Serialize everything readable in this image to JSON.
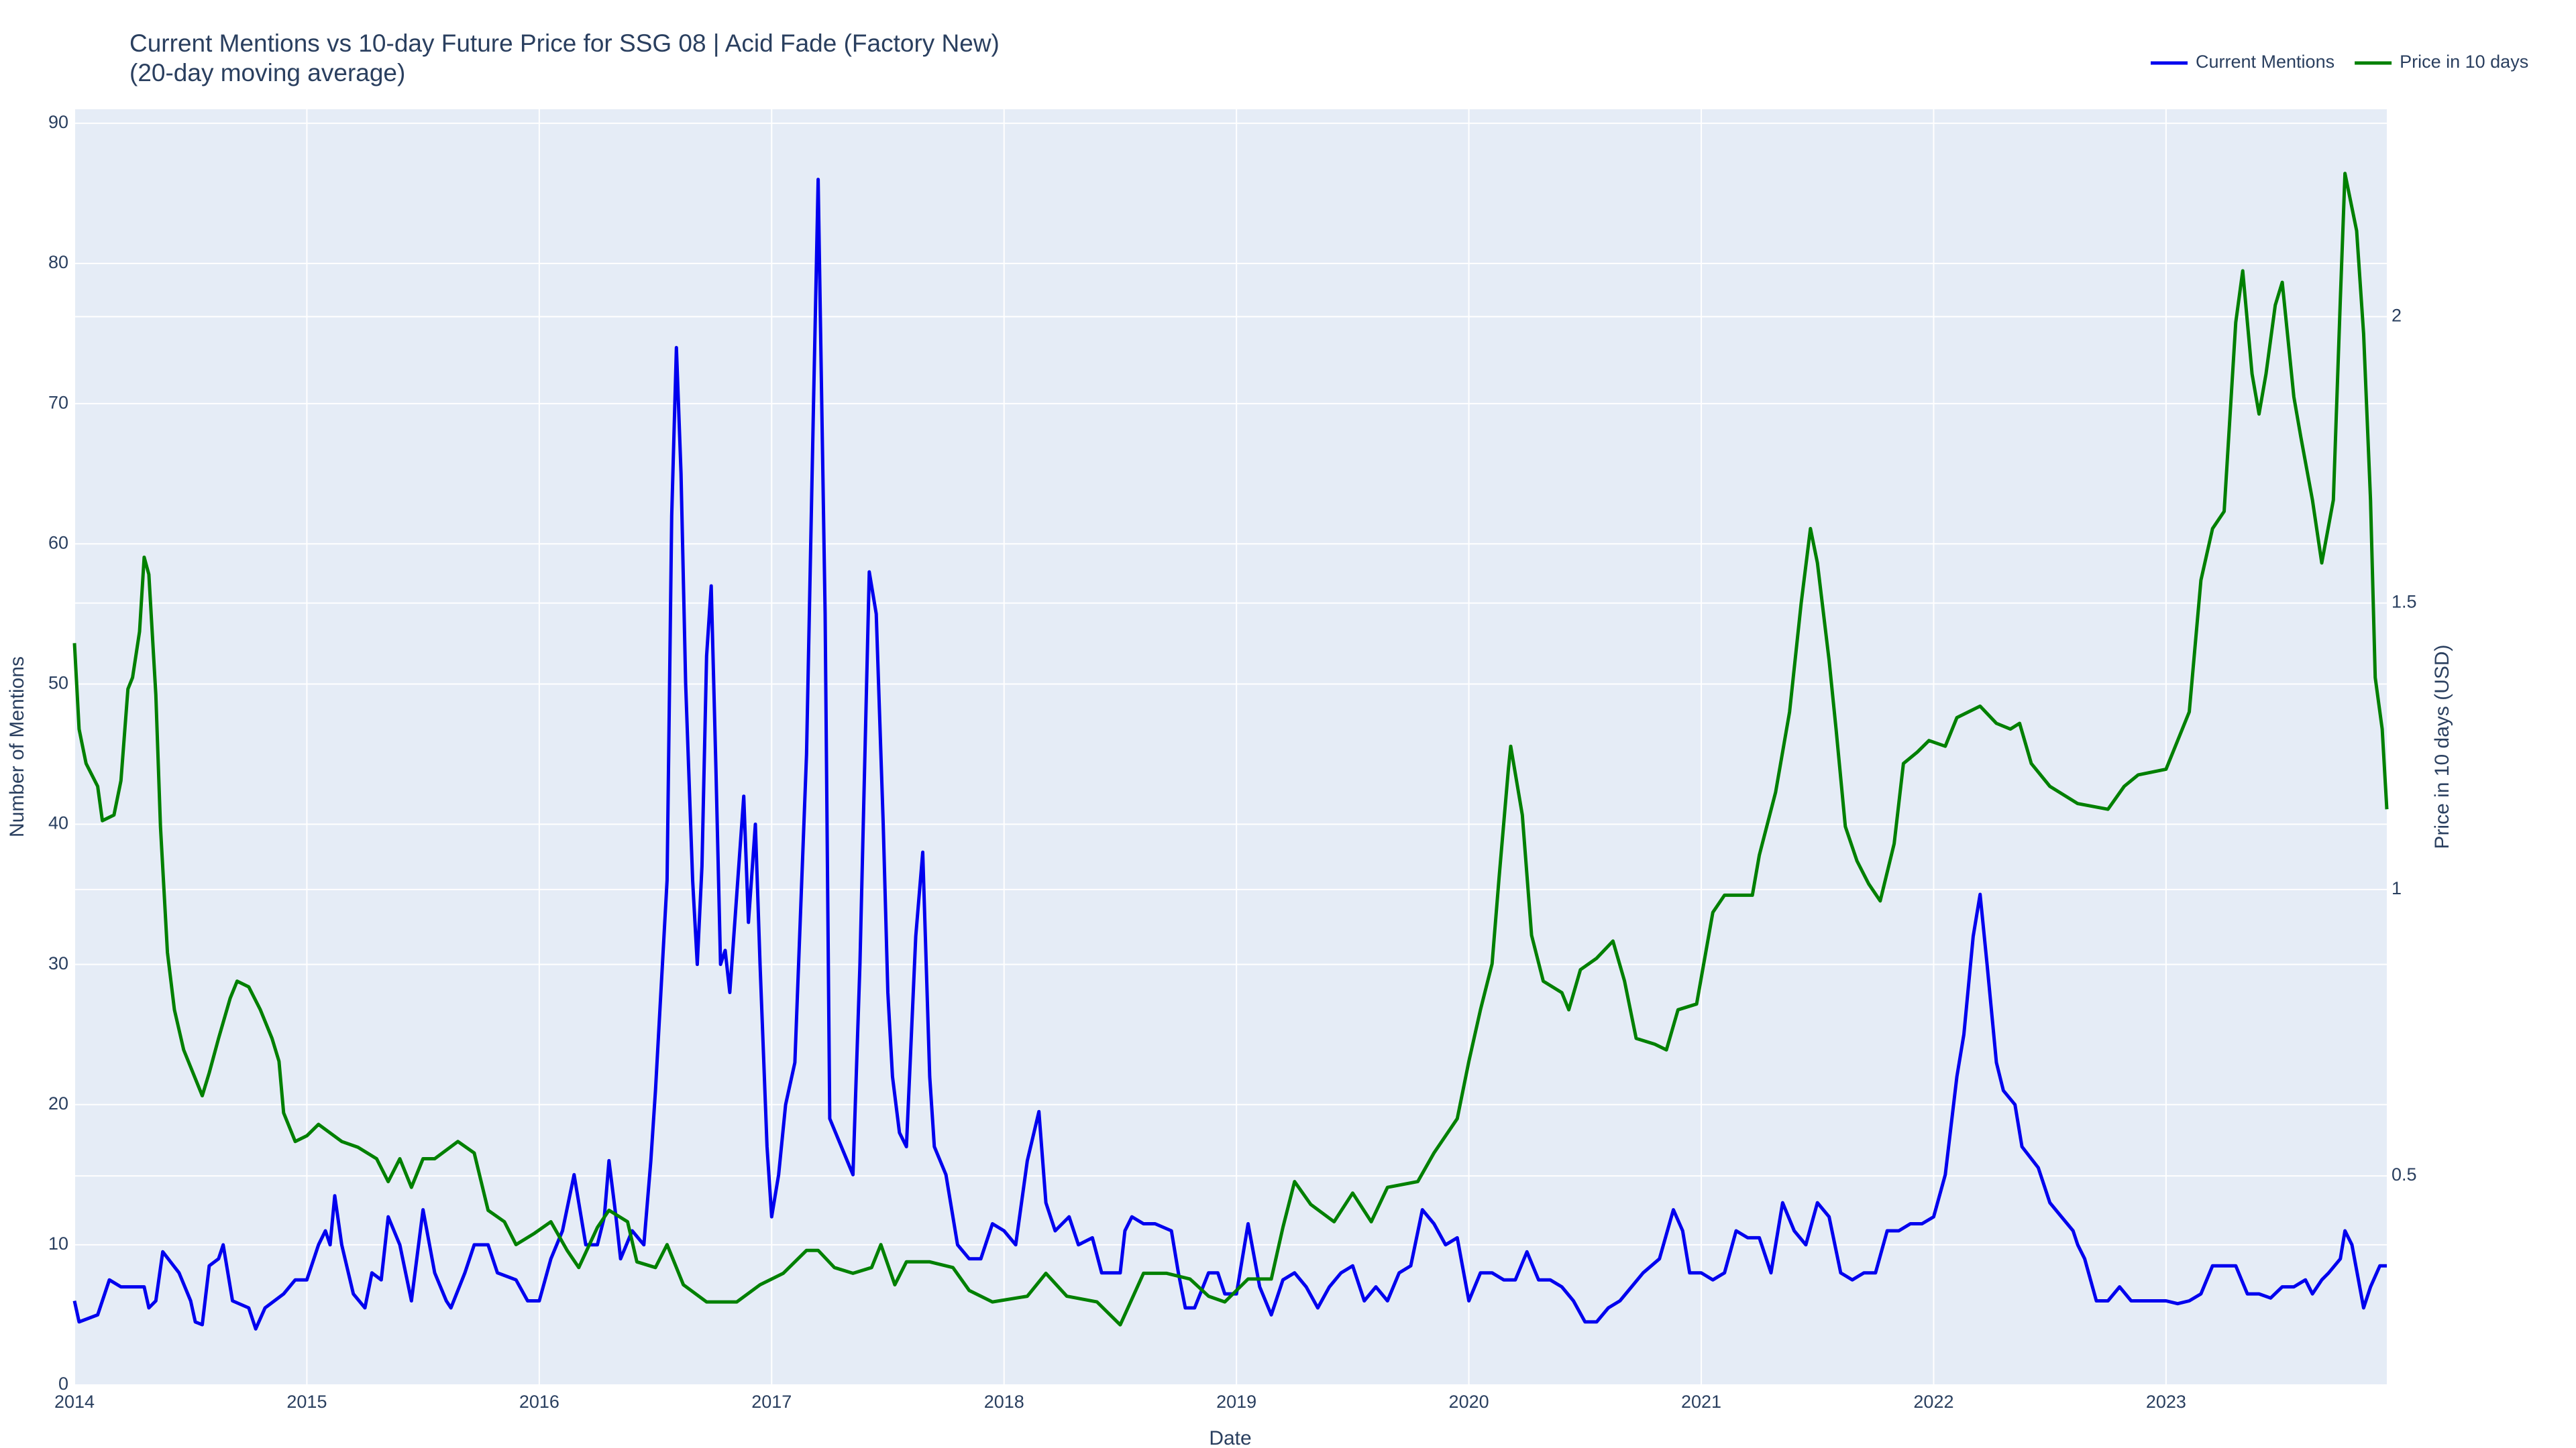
{
  "chart_data": {
    "type": "line",
    "title": "Current Mentions vs 10-day Future Price for SSG 08 | Acid Fade (Factory New)",
    "subtitle": "(20-day moving average)",
    "x_label": "Date",
    "y_label": "Number of Mentions",
    "y2_label": "Price in 10 days (USD)",
    "xlim": [
      2014,
      2023.95
    ],
    "xticks": [
      2014,
      2015,
      2016,
      2017,
      2018,
      2019,
      2020,
      2021,
      2022,
      2023
    ],
    "ylim": [
      0,
      91
    ],
    "yticks": [
      0,
      10,
      20,
      30,
      40,
      50,
      60,
      70,
      80,
      90
    ],
    "y2lim": [
      0.135,
      2.362
    ],
    "y2ticks": [
      0.5,
      1,
      1.5,
      2
    ],
    "grid": true,
    "legend": "top-right",
    "series": [
      {
        "name": "Current Mentions",
        "color": "#0000ee",
        "x": [
          2014.0,
          2014.02,
          2014.1,
          2014.15,
          2014.2,
          2014.3,
          2014.32,
          2014.35,
          2014.38,
          2014.45,
          2014.5,
          2014.52,
          2014.55,
          2014.58,
          2014.62,
          2014.64,
          2014.68,
          2014.75,
          2014.78,
          2014.82,
          2014.9,
          2014.95,
          2015.0,
          2015.05,
          2015.08,
          2015.1,
          2015.12,
          2015.15,
          2015.2,
          2015.25,
          2015.28,
          2015.32,
          2015.35,
          2015.4,
          2015.45,
          2015.5,
          2015.55,
          2015.6,
          2015.62,
          2015.68,
          2015.72,
          2015.78,
          2015.82,
          2015.9,
          2015.95,
          2016.0,
          2016.05,
          2016.1,
          2016.15,
          2016.2,
          2016.25,
          2016.28,
          2016.3,
          2016.33,
          2016.35,
          2016.4,
          2016.45,
          2016.48,
          2016.5,
          2016.52,
          2016.55,
          2016.57,
          2016.59,
          2016.61,
          2016.63,
          2016.66,
          2016.68,
          2016.7,
          2016.72,
          2016.74,
          2016.76,
          2016.78,
          2016.8,
          2016.82,
          2016.85,
          2016.88,
          2016.9,
          2016.93,
          2016.95,
          2016.98,
          2017.0,
          2017.03,
          2017.06,
          2017.1,
          2017.15,
          2017.18,
          2017.2,
          2017.23,
          2017.25,
          2017.3,
          2017.35,
          2017.38,
          2017.42,
          2017.45,
          2017.48,
          2017.5,
          2017.52,
          2017.55,
          2017.58,
          2017.62,
          2017.65,
          2017.68,
          2017.7,
          2017.75,
          2017.8,
          2017.85,
          2017.9,
          2017.95,
          2018.0,
          2018.05,
          2018.1,
          2018.15,
          2018.18,
          2018.22,
          2018.28,
          2018.32,
          2018.38,
          2018.42,
          2018.5,
          2018.52,
          2018.55,
          2018.6,
          2018.65,
          2018.72,
          2018.75,
          2018.78,
          2018.82,
          2018.88,
          2018.92,
          2018.95,
          2019.0,
          2019.05,
          2019.1,
          2019.15,
          2019.2,
          2019.25,
          2019.3,
          2019.35,
          2019.4,
          2019.45,
          2019.5,
          2019.55,
          2019.6,
          2019.65,
          2019.7,
          2019.75,
          2019.8,
          2019.85,
          2019.9,
          2019.95,
          2020.0,
          2020.05,
          2020.1,
          2020.15,
          2020.2,
          2020.25,
          2020.3,
          2020.35,
          2020.4,
          2020.45,
          2020.5,
          2020.55,
          2020.6,
          2020.65,
          2020.7,
          2020.75,
          2020.82,
          2020.88,
          2020.92,
          2020.95,
          2021.0,
          2021.05,
          2021.1,
          2021.15,
          2021.2,
          2021.25,
          2021.3,
          2021.35,
          2021.4,
          2021.45,
          2021.5,
          2021.55,
          2021.6,
          2021.65,
          2021.7,
          2021.75,
          2021.8,
          2021.85,
          2021.9,
          2021.95,
          2022.0,
          2022.05,
          2022.1,
          2022.13,
          2022.17,
          2022.2,
          2022.23,
          2022.27,
          2022.3,
          2022.35,
          2022.38,
          2022.45,
          2022.5,
          2022.55,
          2022.6,
          2022.62,
          2022.65,
          2022.7,
          2022.75,
          2022.8,
          2022.85,
          2023.0,
          2023.05,
          2023.1,
          2023.15,
          2023.2,
          2023.25,
          2023.3,
          2023.35,
          2023.4,
          2023.45,
          2023.5,
          2023.55,
          2023.6,
          2023.63,
          2023.67,
          2023.7,
          2023.75,
          2023.77,
          2023.8,
          2023.85,
          2023.88,
          2023.92,
          2023.95
        ],
        "values": [
          6,
          4.5,
          5,
          7.5,
          7,
          7,
          5.5,
          6,
          9.5,
          8,
          6,
          4.5,
          4.3,
          8.5,
          9,
          10,
          6,
          5.5,
          4,
          5.5,
          6.5,
          7.5,
          7.5,
          10,
          11,
          10,
          13.5,
          10,
          6.5,
          5.5,
          8,
          7.5,
          12,
          10,
          6,
          12.5,
          8,
          6,
          5.5,
          8,
          10,
          10,
          8,
          7.5,
          6,
          6,
          9,
          11,
          15,
          10,
          10,
          12,
          16,
          12,
          9,
          11,
          10,
          16,
          21,
          27,
          36,
          62,
          74,
          65,
          50,
          36,
          30,
          37,
          52,
          57,
          44,
          30,
          31,
          28,
          35,
          42,
          33,
          40,
          30,
          17,
          12,
          15,
          20,
          23,
          45,
          70,
          86,
          55,
          19,
          17,
          15,
          30,
          58,
          55,
          40,
          28,
          22,
          18,
          17,
          32,
          38,
          22,
          17,
          15,
          10,
          9,
          9,
          11.5,
          11,
          10,
          16,
          19.5,
          13,
          11,
          12,
          10,
          10.5,
          8,
          8,
          11,
          12,
          11.5,
          11.5,
          11,
          8,
          5.5,
          5.5,
          8,
          8,
          6.5,
          6.5,
          11.5,
          7,
          5,
          7.5,
          8,
          7,
          5.5,
          7,
          8,
          8.5,
          6,
          7,
          6,
          8,
          8.5,
          12.5,
          11.5,
          10,
          10.5,
          6,
          8,
          8,
          7.5,
          7.5,
          9.5,
          7.5,
          7.5,
          7,
          6,
          4.5,
          4.5,
          5.5,
          6,
          7,
          8,
          9,
          12.5,
          11,
          8,
          8,
          7.5,
          8,
          11,
          10.5,
          10.5,
          8,
          13,
          11,
          10,
          13,
          12,
          8,
          7.5,
          8,
          8,
          11,
          11,
          11.5,
          11.5,
          12,
          15,
          22,
          25,
          32,
          35,
          30,
          23,
          21,
          20,
          17,
          15.5,
          13,
          12,
          11,
          10,
          9,
          6,
          6,
          7,
          6,
          6,
          5.8,
          6,
          6.5,
          8.5,
          8.5,
          8.5,
          6.5,
          6.5,
          6.2,
          7,
          7,
          7.5,
          6.5,
          7.5,
          8,
          9,
          11,
          10,
          5.5,
          7,
          8.5,
          8.5
        ]
      },
      {
        "name": "Price in 10 days",
        "color": "#008000",
        "axis": "y2",
        "x": [
          2014.0,
          2014.02,
          2014.05,
          2014.1,
          2014.12,
          2014.17,
          2014.2,
          2014.23,
          2014.25,
          2014.28,
          2014.3,
          2014.32,
          2014.35,
          2014.37,
          2014.4,
          2014.43,
          2014.47,
          2014.52,
          2014.55,
          2014.58,
          2014.62,
          2014.67,
          2014.7,
          2014.75,
          2014.8,
          2014.85,
          2014.88,
          2014.9,
          2014.95,
          2015.0,
          2015.05,
          2015.15,
          2015.22,
          2015.3,
          2015.35,
          2015.4,
          2015.45,
          2015.5,
          2015.55,
          2015.65,
          2015.72,
          2015.78,
          2015.85,
          2015.9,
          2015.98,
          2016.05,
          2016.12,
          2016.17,
          2016.25,
          2016.3,
          2016.38,
          2016.42,
          2016.5,
          2016.55,
          2016.62,
          2016.72,
          2016.85,
          2016.95,
          2017.05,
          2017.15,
          2017.2,
          2017.27,
          2017.35,
          2017.43,
          2017.47,
          2017.53,
          2017.58,
          2017.68,
          2017.78,
          2017.85,
          2017.95,
          2018.1,
          2018.18,
          2018.27,
          2018.4,
          2018.5,
          2018.6,
          2018.7,
          2018.8,
          2018.88,
          2018.95,
          2019.05,
          2019.15,
          2019.2,
          2019.25,
          2019.32,
          2019.42,
          2019.5,
          2019.58,
          2019.65,
          2019.78,
          2019.85,
          2019.95,
          2020.0,
          2020.05,
          2020.1,
          2020.13,
          2020.17,
          2020.18,
          2020.23,
          2020.27,
          2020.32,
          2020.4,
          2020.43,
          2020.48,
          2020.55,
          2020.62,
          2020.67,
          2020.72,
          2020.8,
          2020.85,
          2020.9,
          2020.98,
          2021.05,
          2021.1,
          2021.22,
          2021.25,
          2021.32,
          2021.38,
          2021.43,
          2021.47,
          2021.5,
          2021.55,
          2021.58,
          2021.62,
          2021.67,
          2021.72,
          2021.77,
          2021.83,
          2021.87,
          2021.93,
          2021.98,
          2022.05,
          2022.1,
          2022.2,
          2022.27,
          2022.33,
          2022.37,
          2022.42,
          2022.5,
          2022.62,
          2022.75,
          2022.82,
          2022.88,
          2023.0,
          2023.05,
          2023.1,
          2023.15,
          2023.2,
          2023.25,
          2023.3,
          2023.33,
          2023.37,
          2023.4,
          2023.43,
          2023.47,
          2023.5,
          2023.55,
          2023.58,
          2023.63,
          2023.67,
          2023.72,
          2023.75,
          2023.77,
          2023.82,
          2023.85,
          2023.88,
          2023.9,
          2023.93,
          2023.95
        ],
        "values": [
          1.43,
          1.28,
          1.22,
          1.18,
          1.12,
          1.13,
          1.19,
          1.35,
          1.37,
          1.45,
          1.58,
          1.55,
          1.34,
          1.11,
          0.89,
          0.79,
          0.72,
          0.67,
          0.64,
          0.68,
          0.74,
          0.81,
          0.84,
          0.83,
          0.79,
          0.74,
          0.7,
          0.61,
          0.56,
          0.57,
          0.59,
          0.56,
          0.55,
          0.53,
          0.49,
          0.53,
          0.48,
          0.53,
          0.53,
          0.56,
          0.54,
          0.44,
          0.42,
          0.38,
          0.4,
          0.42,
          0.37,
          0.34,
          0.41,
          0.44,
          0.42,
          0.35,
          0.34,
          0.38,
          0.31,
          0.28,
          0.28,
          0.31,
          0.33,
          0.37,
          0.37,
          0.34,
          0.33,
          0.34,
          0.38,
          0.31,
          0.35,
          0.35,
          0.34,
          0.3,
          0.28,
          0.29,
          0.33,
          0.29,
          0.28,
          0.24,
          0.33,
          0.33,
          0.32,
          0.29,
          0.28,
          0.32,
          0.32,
          0.41,
          0.49,
          0.45,
          0.42,
          0.47,
          0.42,
          0.48,
          0.49,
          0.54,
          0.6,
          0.7,
          0.79,
          0.87,
          1.02,
          1.21,
          1.25,
          1.13,
          0.92,
          0.84,
          0.82,
          0.79,
          0.86,
          0.88,
          0.91,
          0.84,
          0.74,
          0.73,
          0.72,
          0.79,
          0.8,
          0.96,
          0.99,
          0.99,
          1.06,
          1.17,
          1.31,
          1.5,
          1.63,
          1.57,
          1.4,
          1.28,
          1.11,
          1.05,
          1.01,
          0.98,
          1.08,
          1.22,
          1.24,
          1.26,
          1.25,
          1.3,
          1.32,
          1.29,
          1.28,
          1.29,
          1.22,
          1.18,
          1.15,
          1.14,
          1.18,
          1.2,
          1.21,
          1.26,
          1.31,
          1.54,
          1.63,
          1.66,
          1.99,
          2.08,
          1.9,
          1.83,
          1.9,
          2.02,
          2.06,
          1.86,
          1.79,
          1.68,
          1.57,
          1.68,
          2.03,
          2.25,
          2.15,
          1.97,
          1.68,
          1.37,
          1.28,
          1.14
        ]
      }
    ]
  }
}
